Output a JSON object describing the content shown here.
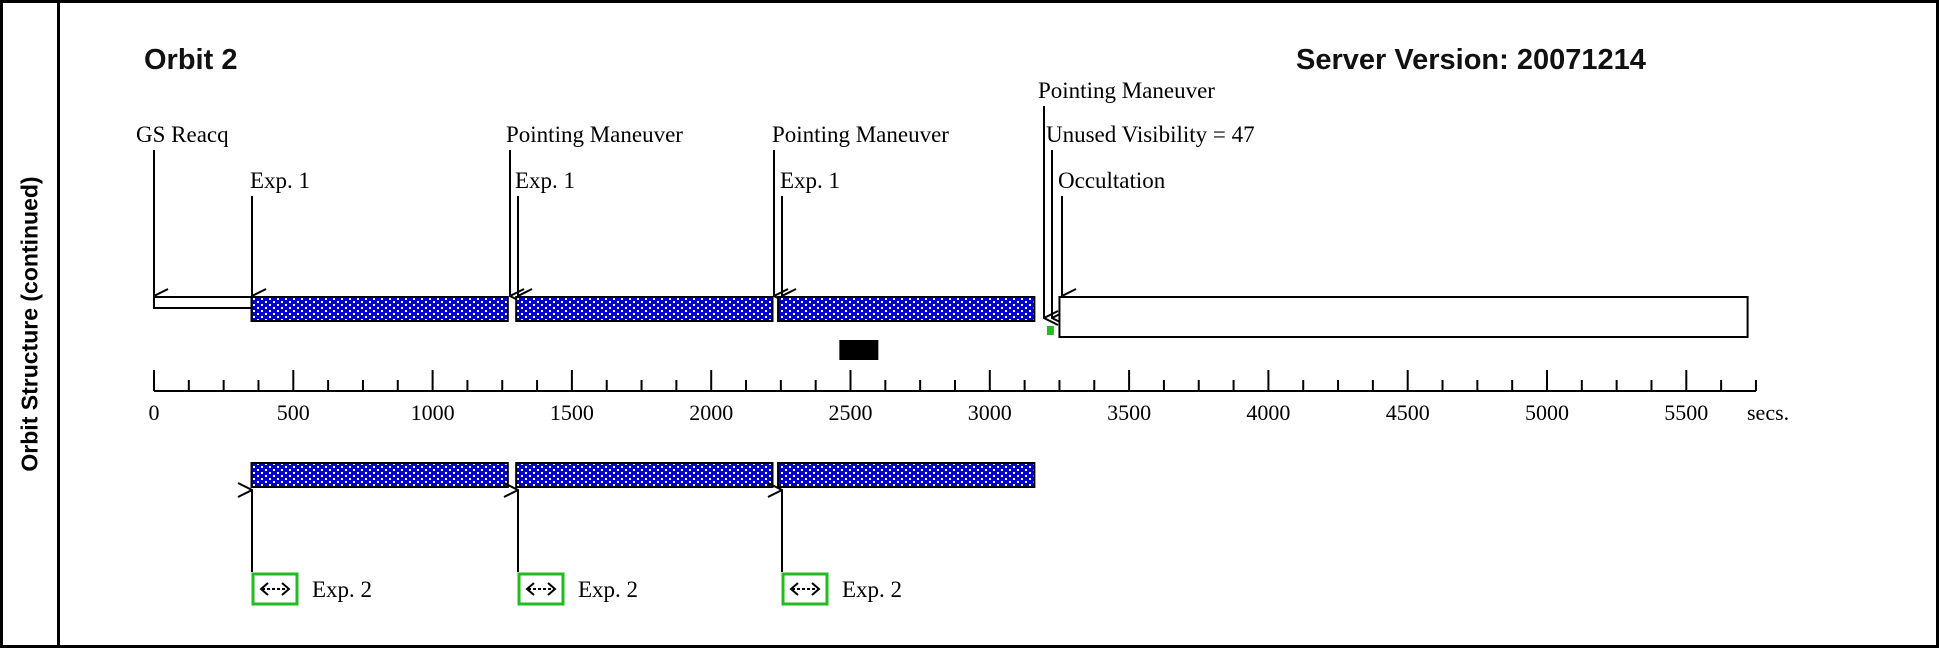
{
  "sidebar_label": "Orbit Structure (continued)",
  "orbit_title": "Orbit 2",
  "server_version": "Server Version: 20071214",
  "axis": {
    "min": 0,
    "max": 5750,
    "major_ticks": [
      0,
      500,
      1000,
      1500,
      2000,
      2500,
      3000,
      3500,
      4000,
      4500,
      5000,
      5500
    ],
    "tick_labels": [
      "0",
      "500",
      "1000",
      "1500",
      "2000",
      "2500",
      "3000",
      "3500",
      "4000",
      "4500",
      "5000",
      "5500"
    ],
    "unit_label": "secs."
  },
  "colors": {
    "exposure_fill": "#0000cc",
    "exposure_dots": "#ffffff",
    "green_box": "#22bb22",
    "marker": "#000000"
  },
  "top_annotations": {
    "gs_reacq": "GS Reacq",
    "exp1_a": "Exp. 1",
    "pm_1": "Pointing Maneuver",
    "exp1_b": "Exp. 1",
    "pm_2": "Pointing Maneuver",
    "exp1_c": "Exp. 1",
    "pm_3": "Pointing Maneuver",
    "unused_visibility": "Unused Visibility = 47",
    "occultation": "Occultation"
  },
  "timeline": {
    "gs_reacq": {
      "start": 0,
      "end": 350
    },
    "exposures_top": [
      {
        "start": 350,
        "end": 1270
      },
      {
        "start": 1300,
        "end": 2220
      },
      {
        "start": 2240,
        "end": 3160
      }
    ],
    "unused_marker": {
      "start": 3205,
      "end": 3230
    },
    "occultation": {
      "start": 3250,
      "end": 5720
    },
    "black_marker": {
      "start": 2460,
      "end": 2600
    },
    "exposures_bottom": [
      {
        "start": 350,
        "end": 1270
      },
      {
        "start": 1300,
        "end": 2220
      },
      {
        "start": 2240,
        "end": 3160
      }
    ],
    "exp2_labels": [
      "Exp. 2",
      "Exp. 2",
      "Exp. 2"
    ]
  }
}
